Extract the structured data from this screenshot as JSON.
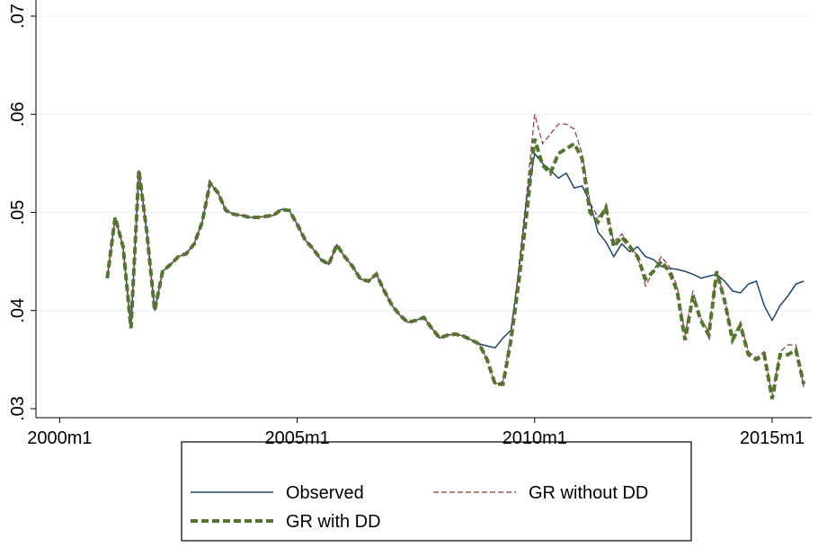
{
  "chart_data": {
    "type": "line",
    "x": [
      "2001m1",
      "2001m3",
      "2001m5",
      "2001m7",
      "2001m9",
      "2001m11",
      "2002m1",
      "2002m3",
      "2002m5",
      "2002m7",
      "2002m9",
      "2002m11",
      "2003m1",
      "2003m3",
      "2003m5",
      "2003m7",
      "2003m9",
      "2003m11",
      "2004m1",
      "2004m3",
      "2004m5",
      "2004m7",
      "2004m9",
      "2004m11",
      "2005m1",
      "2005m3",
      "2005m5",
      "2005m7",
      "2005m9",
      "2005m11",
      "2006m1",
      "2006m3",
      "2006m5",
      "2006m7",
      "2006m9",
      "2006m11",
      "2007m1",
      "2007m3",
      "2007m5",
      "2007m7",
      "2007m9",
      "2007m11",
      "2008m1",
      "2008m3",
      "2008m5",
      "2008m7",
      "2008m9",
      "2008m11",
      "2009m1",
      "2009m3",
      "2009m5",
      "2009m7",
      "2009m9",
      "2009m11",
      "2010m1",
      "2010m3",
      "2010m5",
      "2010m7",
      "2010m9",
      "2010m11",
      "2011m1",
      "2011m3",
      "2011m5",
      "2011m7",
      "2011m9",
      "2011m11",
      "2012m1",
      "2012m3",
      "2012m5",
      "2012m7",
      "2012m9",
      "2012m11",
      "2013m1",
      "2013m3",
      "2013m5",
      "2013m7",
      "2013m9",
      "2013m11",
      "2014m1",
      "2014m3",
      "2014m5",
      "2014m7",
      "2014m9",
      "2014m11",
      "2015m1",
      "2015m3",
      "2015m5",
      "2015m7",
      "2015m9"
    ],
    "series": [
      {
        "name": "Observed",
        "color": "#1a476f",
        "dash": "",
        "width": 1.5,
        "values": [
          0.0433,
          0.0495,
          0.0465,
          0.0382,
          0.0543,
          0.048,
          0.04,
          0.044,
          0.0447,
          0.0455,
          0.0458,
          0.0468,
          0.049,
          0.053,
          0.052,
          0.0502,
          0.0498,
          0.0497,
          0.0495,
          0.0495,
          0.0496,
          0.0497,
          0.0503,
          0.0502,
          0.0488,
          0.0472,
          0.0463,
          0.0452,
          0.0447,
          0.0467,
          0.0455,
          0.0445,
          0.0432,
          0.043,
          0.0437,
          0.042,
          0.0405,
          0.0395,
          0.0388,
          0.039,
          0.0393,
          0.0382,
          0.0372,
          0.0375,
          0.0376,
          0.0374,
          0.037,
          0.0366,
          0.0364,
          0.0362,
          0.0372,
          0.038,
          0.044,
          0.0515,
          0.056,
          0.055,
          0.0543,
          0.0535,
          0.054,
          0.0525,
          0.0527,
          0.051,
          0.048,
          0.047,
          0.0455,
          0.0468,
          0.046,
          0.0465,
          0.0455,
          0.0452,
          0.0445,
          0.0443,
          0.0442,
          0.044,
          0.0437,
          0.0433,
          0.0435,
          0.0437,
          0.043,
          0.042,
          0.0418,
          0.0427,
          0.043,
          0.0405,
          0.039,
          0.0405,
          0.0415,
          0.0427,
          0.043
        ]
      },
      {
        "name": "GR without DD",
        "color": "#90353b",
        "dash": "6 3",
        "width": 1.2,
        "values": [
          0.0433,
          0.0495,
          0.0465,
          0.0382,
          0.0543,
          0.048,
          0.04,
          0.044,
          0.0447,
          0.0455,
          0.0458,
          0.0468,
          0.049,
          0.053,
          0.052,
          0.0502,
          0.0498,
          0.0497,
          0.0495,
          0.0495,
          0.0496,
          0.0497,
          0.0503,
          0.0502,
          0.0488,
          0.0472,
          0.0463,
          0.0452,
          0.0447,
          0.0467,
          0.0455,
          0.0445,
          0.0432,
          0.043,
          0.0437,
          0.042,
          0.0405,
          0.0395,
          0.0388,
          0.039,
          0.0393,
          0.0382,
          0.0372,
          0.0375,
          0.0376,
          0.0374,
          0.037,
          0.0366,
          0.035,
          0.0325,
          0.0328,
          0.0375,
          0.0445,
          0.052,
          0.06,
          0.057,
          0.058,
          0.059,
          0.059,
          0.0585,
          0.056,
          0.051,
          0.0495,
          0.0505,
          0.047,
          0.0478,
          0.0468,
          0.0455,
          0.0425,
          0.044,
          0.0455,
          0.0445,
          0.0425,
          0.0375,
          0.042,
          0.0392,
          0.0378,
          0.044,
          0.0412,
          0.0372,
          0.0388,
          0.0358,
          0.0352,
          0.0358,
          0.0312,
          0.0358,
          0.0365,
          0.0365,
          0.0322
        ]
      },
      {
        "name": "GR with DD",
        "color": "#55752f",
        "dash": "8 4",
        "width": 4,
        "values": [
          0.0433,
          0.0495,
          0.0465,
          0.0382,
          0.0543,
          0.048,
          0.04,
          0.044,
          0.0447,
          0.0455,
          0.0458,
          0.0468,
          0.049,
          0.053,
          0.052,
          0.0502,
          0.0498,
          0.0497,
          0.0495,
          0.0495,
          0.0496,
          0.0497,
          0.0503,
          0.0502,
          0.0488,
          0.0472,
          0.0463,
          0.0452,
          0.0447,
          0.0467,
          0.0455,
          0.0445,
          0.0432,
          0.043,
          0.0437,
          0.042,
          0.0405,
          0.0395,
          0.0388,
          0.039,
          0.0393,
          0.0382,
          0.0372,
          0.0375,
          0.0376,
          0.0374,
          0.037,
          0.0366,
          0.035,
          0.0325,
          0.0325,
          0.037,
          0.043,
          0.05,
          0.0575,
          0.0548,
          0.054,
          0.056,
          0.0565,
          0.057,
          0.0555,
          0.05,
          0.049,
          0.0505,
          0.0465,
          0.0475,
          0.0465,
          0.0455,
          0.0432,
          0.044,
          0.045,
          0.044,
          0.042,
          0.037,
          0.0415,
          0.039,
          0.0375,
          0.044,
          0.041,
          0.037,
          0.0385,
          0.0355,
          0.035,
          0.0355,
          0.031,
          0.0355,
          0.0355,
          0.036,
          0.0325
        ]
      }
    ],
    "xlim": [
      "1999m7",
      "2015m11"
    ],
    "xticks": [
      {
        "value": "2000m1",
        "label": "2000m1"
      },
      {
        "value": "2005m1",
        "label": "2005m1"
      },
      {
        "value": "2010m1",
        "label": "2010m1"
      },
      {
        "value": "2015m1",
        "label": "2015m1"
      }
    ],
    "ylim": [
      0.03,
      0.07
    ],
    "yticks": [
      {
        "value": 0.03,
        "label": ".03"
      },
      {
        "value": 0.04,
        "label": ".04"
      },
      {
        "value": 0.05,
        "label": ".05"
      },
      {
        "value": 0.06,
        "label": ".06"
      },
      {
        "value": 0.07,
        "label": ".07"
      }
    ],
    "grid": true
  }
}
